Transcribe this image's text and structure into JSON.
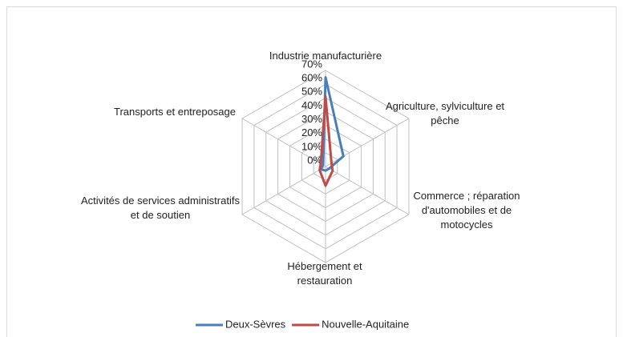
{
  "chart_data": {
    "type": "radar",
    "categories": [
      "Industrie manufacturière",
      "Agriculture, sylviculture et pêche",
      "Commerce ; réparation d'automobiles et de motocycles",
      "Hébergement et restauration",
      "Activités de services administratifs et de soutien",
      "Transports et entreposage"
    ],
    "series": [
      {
        "name": "Deux-Sèvres",
        "color": "#4a7ebb",
        "values": [
          65,
          15,
          3,
          3,
          4,
          2
        ]
      },
      {
        "name": "Nouvelle-Aquitaine",
        "color": "#be4b48",
        "values": [
          51,
          5,
          6,
          14,
          5,
          4
        ]
      }
    ],
    "ylim": [
      0,
      70
    ],
    "yticks": [
      {
        "value": 0,
        "label": "0%"
      },
      {
        "value": 10,
        "label": "10%"
      },
      {
        "value": 20,
        "label": "20%"
      },
      {
        "value": 30,
        "label": "30%"
      },
      {
        "value": 40,
        "label": "40%"
      },
      {
        "value": 50,
        "label": "50%"
      },
      {
        "value": 60,
        "label": "60%"
      },
      {
        "value": 70,
        "label": "70%"
      }
    ],
    "grid": true,
    "legend": "bottom"
  }
}
